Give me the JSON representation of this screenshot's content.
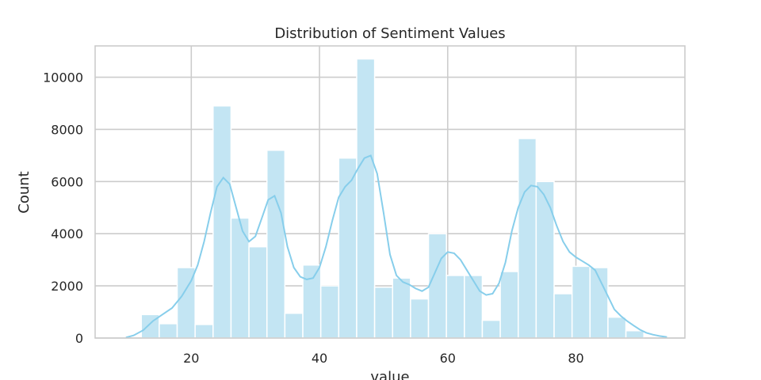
{
  "chart_data": {
    "type": "histogram",
    "title": "Distribution of Sentiment Values",
    "xlabel": "value",
    "ylabel": "Count",
    "xlim": [
      5,
      97
    ],
    "ylim": [
      0,
      11200
    ],
    "xticks": [
      20,
      40,
      60,
      80
    ],
    "yticks": [
      0,
      2000,
      4000,
      6000,
      8000,
      10000
    ],
    "grid": true,
    "bar_color": "#c3e5f3",
    "kde_color": "#87ceeb",
    "bins": [
      {
        "start": 12.2,
        "end": 15.0,
        "count": 900
      },
      {
        "start": 15.0,
        "end": 17.8,
        "count": 550
      },
      {
        "start": 17.8,
        "end": 20.6,
        "count": 2700
      },
      {
        "start": 20.6,
        "end": 23.4,
        "count": 520
      },
      {
        "start": 23.4,
        "end": 26.2,
        "count": 8900
      },
      {
        "start": 26.2,
        "end": 29.0,
        "count": 4600
      },
      {
        "start": 29.0,
        "end": 31.8,
        "count": 3500
      },
      {
        "start": 31.8,
        "end": 34.6,
        "count": 7200
      },
      {
        "start": 34.6,
        "end": 37.4,
        "count": 950
      },
      {
        "start": 37.4,
        "end": 40.2,
        "count": 2800
      },
      {
        "start": 40.2,
        "end": 43.0,
        "count": 2000
      },
      {
        "start": 43.0,
        "end": 45.8,
        "count": 6900
      },
      {
        "start": 45.8,
        "end": 48.6,
        "count": 10700
      },
      {
        "start": 48.6,
        "end": 51.4,
        "count": 1950
      },
      {
        "start": 51.4,
        "end": 54.2,
        "count": 2300
      },
      {
        "start": 54.2,
        "end": 57.0,
        "count": 1500
      },
      {
        "start": 57.0,
        "end": 59.8,
        "count": 4000
      },
      {
        "start": 59.8,
        "end": 62.6,
        "count": 2400
      },
      {
        "start": 62.6,
        "end": 65.4,
        "count": 2400
      },
      {
        "start": 65.4,
        "end": 68.2,
        "count": 680
      },
      {
        "start": 68.2,
        "end": 71.0,
        "count": 2550
      },
      {
        "start": 71.0,
        "end": 73.8,
        "count": 7650
      },
      {
        "start": 73.8,
        "end": 76.6,
        "count": 6000
      },
      {
        "start": 76.6,
        "end": 79.4,
        "count": 1700
      },
      {
        "start": 79.4,
        "end": 82.2,
        "count": 2750
      },
      {
        "start": 82.2,
        "end": 85.0,
        "count": 2700
      },
      {
        "start": 85.0,
        "end": 87.8,
        "count": 800
      },
      {
        "start": 87.8,
        "end": 90.6,
        "count": 280
      }
    ],
    "kde": {
      "x": [
        9.8,
        11,
        12.5,
        14,
        15.5,
        17,
        18.5,
        20,
        21,
        22,
        23,
        24,
        25,
        26,
        27,
        28,
        29,
        30,
        31,
        32,
        33,
        34,
        35,
        36,
        37,
        38,
        39,
        40,
        41,
        42,
        43,
        44,
        45,
        46,
        47,
        48,
        49,
        50,
        51,
        52,
        53,
        54,
        55,
        56,
        57,
        58,
        59,
        60,
        61,
        62,
        63,
        64,
        65,
        66,
        67,
        68,
        69,
        70,
        71,
        72,
        73,
        74,
        75,
        76,
        77,
        78,
        79,
        80,
        81,
        82,
        83,
        84,
        85,
        86,
        87,
        88,
        89,
        90,
        91,
        92,
        93,
        94.2
      ],
      "y": [
        20,
        100,
        300,
        650,
        900,
        1150,
        1600,
        2200,
        2800,
        3700,
        4800,
        5800,
        6150,
        5900,
        5000,
        4100,
        3700,
        3900,
        4600,
        5300,
        5450,
        4800,
        3500,
        2700,
        2350,
        2250,
        2300,
        2700,
        3500,
        4500,
        5400,
        5800,
        6050,
        6500,
        6900,
        7000,
        6300,
        4800,
        3200,
        2400,
        2150,
        2050,
        1900,
        1800,
        1950,
        2500,
        3050,
        3300,
        3250,
        3000,
        2600,
        2200,
        1800,
        1650,
        1700,
        2100,
        2900,
        4100,
        5000,
        5600,
        5850,
        5800,
        5500,
        5000,
        4300,
        3700,
        3300,
        3100,
        2950,
        2800,
        2600,
        2100,
        1600,
        1100,
        850,
        650,
        480,
        320,
        200,
        130,
        80,
        40
      ]
    }
  }
}
